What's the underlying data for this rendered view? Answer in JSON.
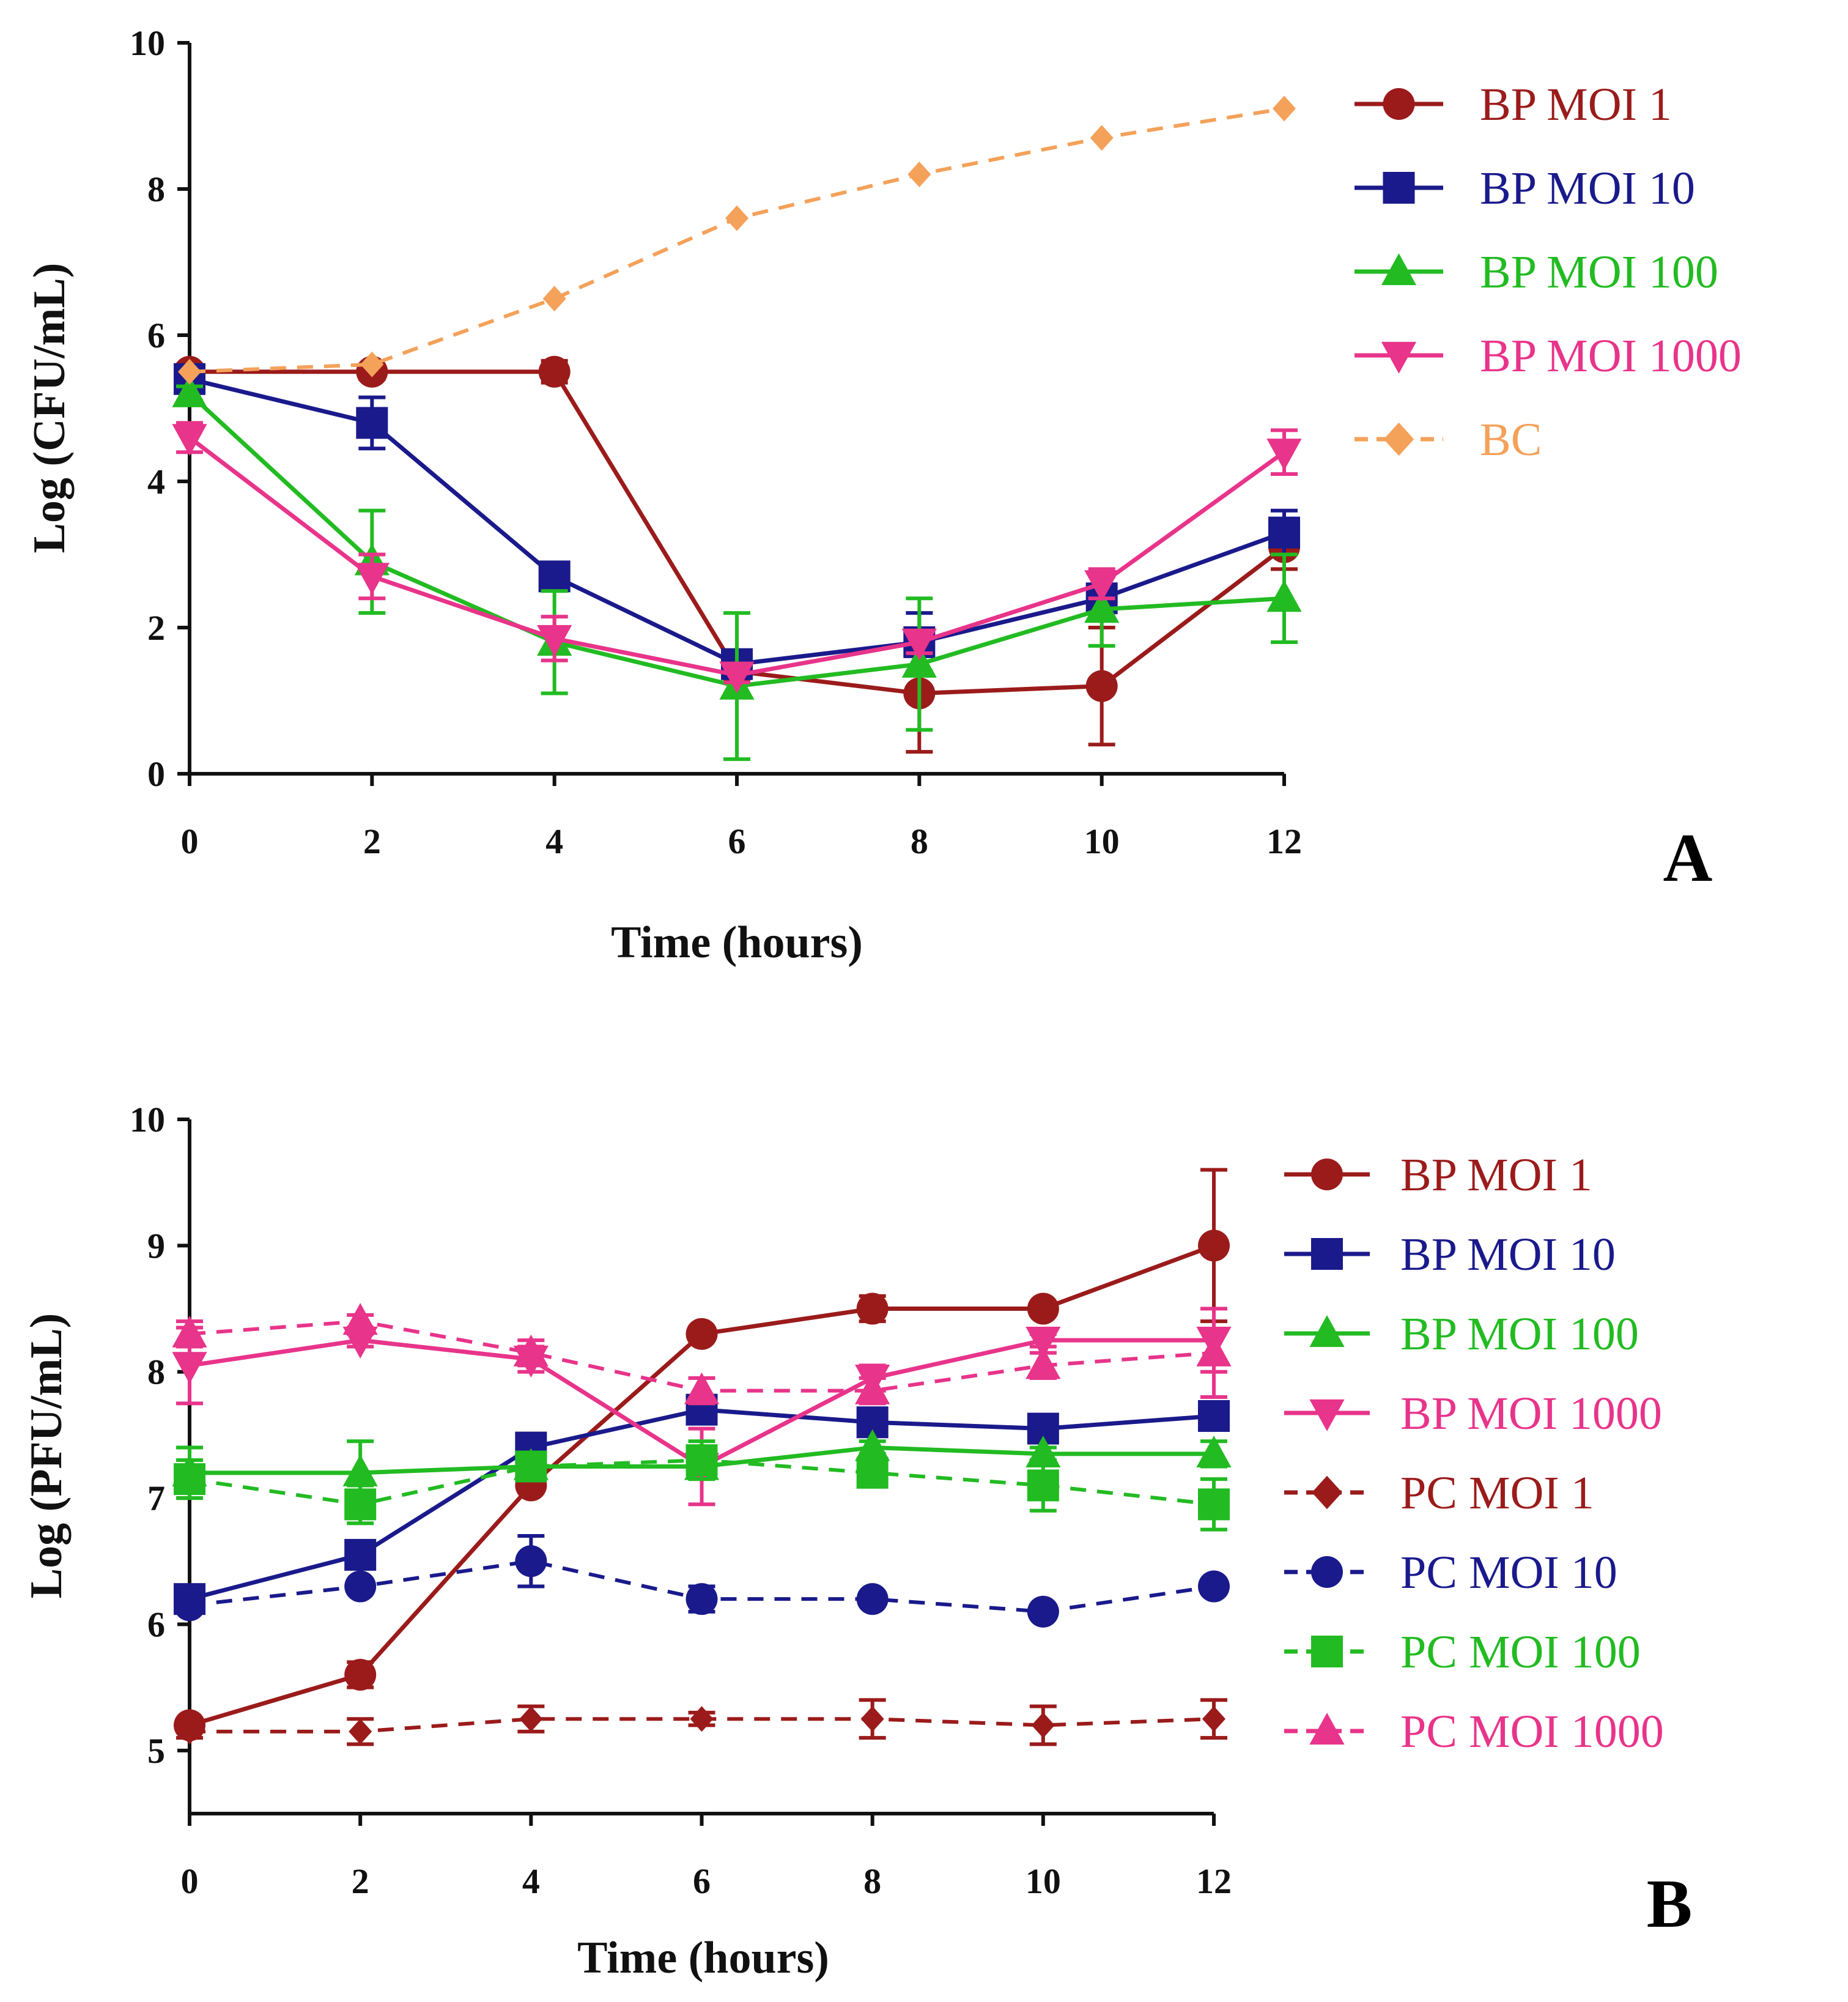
{
  "chart_data": [
    {
      "type": "line",
      "panel_label": "A",
      "xlabel": "Time (hours)",
      "ylabel": "Log (CFU/mL)",
      "xlim": [
        0,
        12
      ],
      "ylim": [
        0,
        10
      ],
      "xticks": [
        "0",
        "2",
        "4",
        "6",
        "8",
        "10",
        "12"
      ],
      "yticks": [
        "0",
        "2",
        "4",
        "6",
        "8",
        "10"
      ],
      "legend_position": "right",
      "x": [
        0,
        2,
        4,
        6,
        8,
        10,
        12
      ],
      "series": [
        {
          "name": "BP MOI 1",
          "color": "#9b1b1b",
          "marker": "circle",
          "dash": false,
          "values": [
            5.5,
            5.5,
            5.5,
            1.4,
            1.1,
            1.2,
            3.1
          ],
          "errors": [
            0.1,
            0.1,
            0.15,
            0.1,
            0.8,
            0.8,
            0.3
          ]
        },
        {
          "name": "BP MOI 10",
          "color": "#1a1a8c",
          "marker": "square",
          "dash": false,
          "values": [
            5.4,
            4.8,
            2.7,
            1.5,
            1.8,
            2.4,
            3.3
          ],
          "errors": [
            0.1,
            0.35,
            0.1,
            0.1,
            0.4,
            0.3,
            0.3
          ]
        },
        {
          "name": "BP MOI 100",
          "color": "#22bb22",
          "marker": "triangle-up",
          "dash": false,
          "values": [
            5.2,
            2.9,
            1.8,
            1.2,
            1.5,
            2.25,
            2.4
          ],
          "errors": [
            0.1,
            0.7,
            0.7,
            1.0,
            0.9,
            0.5,
            0.6
          ]
        },
        {
          "name": "BP MOI 1000",
          "color": "#e8348a",
          "marker": "triangle-down",
          "dash": false,
          "values": [
            4.6,
            2.7,
            1.85,
            1.35,
            1.8,
            2.6,
            4.4
          ],
          "errors": [
            0.2,
            0.3,
            0.3,
            0.1,
            0.15,
            0.2,
            0.3
          ]
        },
        {
          "name": "BC",
          "color": "#f4a15a",
          "marker": "diamond",
          "dash": true,
          "values": [
            5.5,
            5.6,
            6.5,
            7.6,
            8.2,
            8.7,
            9.1
          ],
          "errors": [
            0,
            0,
            0,
            0,
            0,
            0,
            0
          ]
        }
      ]
    },
    {
      "type": "line",
      "panel_label": "B",
      "xlabel": "Time (hours)",
      "ylabel": "Log (PFU/mL)",
      "xlim": [
        0,
        12
      ],
      "ylim": [
        4.5,
        10
      ],
      "xticks": [
        "0",
        "2",
        "4",
        "6",
        "8",
        "10",
        "12"
      ],
      "yticks": [
        "5",
        "6",
        "7",
        "8",
        "9",
        "10"
      ],
      "legend_position": "right",
      "x": [
        0,
        2,
        4,
        6,
        8,
        10,
        12
      ],
      "series": [
        {
          "name": "BP MOI 1",
          "color": "#9b1b1b",
          "marker": "circle",
          "dash": false,
          "values": [
            5.2,
            5.6,
            7.1,
            8.3,
            8.5,
            8.5,
            9.0
          ],
          "errors": [
            0.05,
            0.1,
            0.05,
            0.05,
            0.1,
            0.05,
            0.6
          ]
        },
        {
          "name": "BP MOI 10",
          "color": "#1a1a8c",
          "marker": "square",
          "dash": false,
          "values": [
            6.2,
            6.55,
            7.4,
            7.7,
            7.6,
            7.55,
            7.65
          ],
          "errors": [
            0.05,
            0.1,
            0.05,
            0.05,
            0.05,
            0.05,
            0.05
          ]
        },
        {
          "name": "BP MOI 100",
          "color": "#22bb22",
          "marker": "triangle-up",
          "dash": false,
          "values": [
            7.2,
            7.2,
            7.25,
            7.25,
            7.4,
            7.35,
            7.35
          ],
          "errors": [
            0.2,
            0.25,
            0.05,
            0.1,
            0.05,
            0.05,
            0.1
          ]
        },
        {
          "name": "BP MOI 1000",
          "color": "#e8348a",
          "marker": "triangle-down",
          "dash": false,
          "values": [
            8.05,
            8.25,
            8.1,
            7.25,
            7.95,
            8.25,
            8.25
          ],
          "errors": [
            0.3,
            0.05,
            0.1,
            0.3,
            0.1,
            0.05,
            0.25
          ]
        },
        {
          "name": "PC MOI 1",
          "color": "#9b1b1b",
          "marker": "diamond",
          "dash": true,
          "values": [
            5.15,
            5.15,
            5.25,
            5.25,
            5.25,
            5.2,
            5.25
          ],
          "errors": [
            0.05,
            0.1,
            0.1,
            0.05,
            0.15,
            0.15,
            0.15
          ]
        },
        {
          "name": "PC MOI 10",
          "color": "#1a1a8c",
          "marker": "circle",
          "dash": true,
          "values": [
            6.15,
            6.3,
            6.5,
            6.2,
            6.2,
            6.1,
            6.3
          ],
          "errors": [
            0.05,
            0.05,
            0.2,
            0.1,
            0.05,
            0.05,
            0.05
          ]
        },
        {
          "name": "PC MOI 100",
          "color": "#22bb22",
          "marker": "square",
          "dash": true,
          "values": [
            7.15,
            6.95,
            7.25,
            7.3,
            7.2,
            7.1,
            6.95
          ],
          "errors": [
            0.15,
            0.15,
            0.05,
            0.15,
            0.1,
            0.2,
            0.2
          ]
        },
        {
          "name": "PC MOI 1000",
          "color": "#e8348a",
          "marker": "triangle-up",
          "dash": true,
          "values": [
            8.3,
            8.4,
            8.15,
            7.85,
            7.85,
            8.05,
            8.15
          ],
          "errors": [
            0.1,
            0.05,
            0.1,
            0.1,
            0.1,
            0.1,
            0.35
          ]
        }
      ]
    }
  ]
}
